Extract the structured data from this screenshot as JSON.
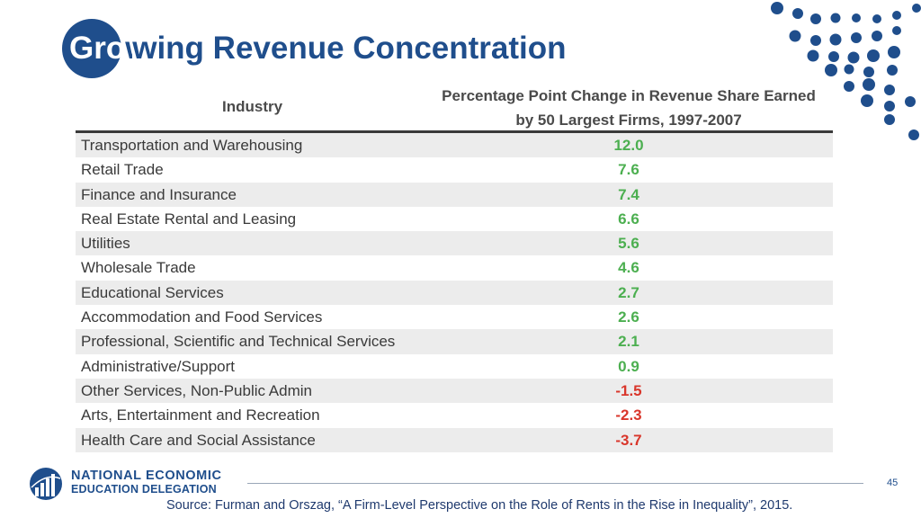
{
  "slide": {
    "title_in_circle": "Gro",
    "title_mid": "w",
    "title_rest": "wing Revenue Concentration",
    "page_number": "45",
    "source": "Source: Furman and Orszag, “A Firm-Level Perspective on the Role of Rents in the Rise in Inequality”, 2015."
  },
  "logo": {
    "line1": "NATIONAL ECONOMIC",
    "line2": "EDUCATION DELEGATION"
  },
  "table": {
    "header_industry": "Industry",
    "header_change_line1": "Percentage Point Change in Revenue Share Earned",
    "header_change_line2": "by 50 Largest Firms, 1997-2007",
    "rows": [
      {
        "industry": "Transportation and Warehousing",
        "value": "12.0"
      },
      {
        "industry": "Retail Trade",
        "value": "7.6"
      },
      {
        "industry": "Finance and Insurance",
        "value": "7.4"
      },
      {
        "industry": "Real Estate Rental and Leasing",
        "value": "6.6"
      },
      {
        "industry": "Utilities",
        "value": "5.6"
      },
      {
        "industry": "Wholesale Trade",
        "value": "4.6"
      },
      {
        "industry": "Educational Services",
        "value": "2.7"
      },
      {
        "industry": "Accommodation and Food Services",
        "value": "2.6"
      },
      {
        "industry": "Professional, Scientific and Technical Services",
        "value": "2.1"
      },
      {
        "industry": "Administrative/Support",
        "value": "0.9"
      },
      {
        "industry": "Other Services, Non-Public Admin",
        "value": "-1.5"
      },
      {
        "industry": "Arts, Entertainment and Recreation",
        "value": "-2.3"
      },
      {
        "industry": "Health Care and Social Assistance",
        "value": "-3.7"
      }
    ]
  },
  "colors": {
    "brand_blue": "#1f4e8c",
    "positive": "#4caf50",
    "negative": "#d9362b"
  }
}
